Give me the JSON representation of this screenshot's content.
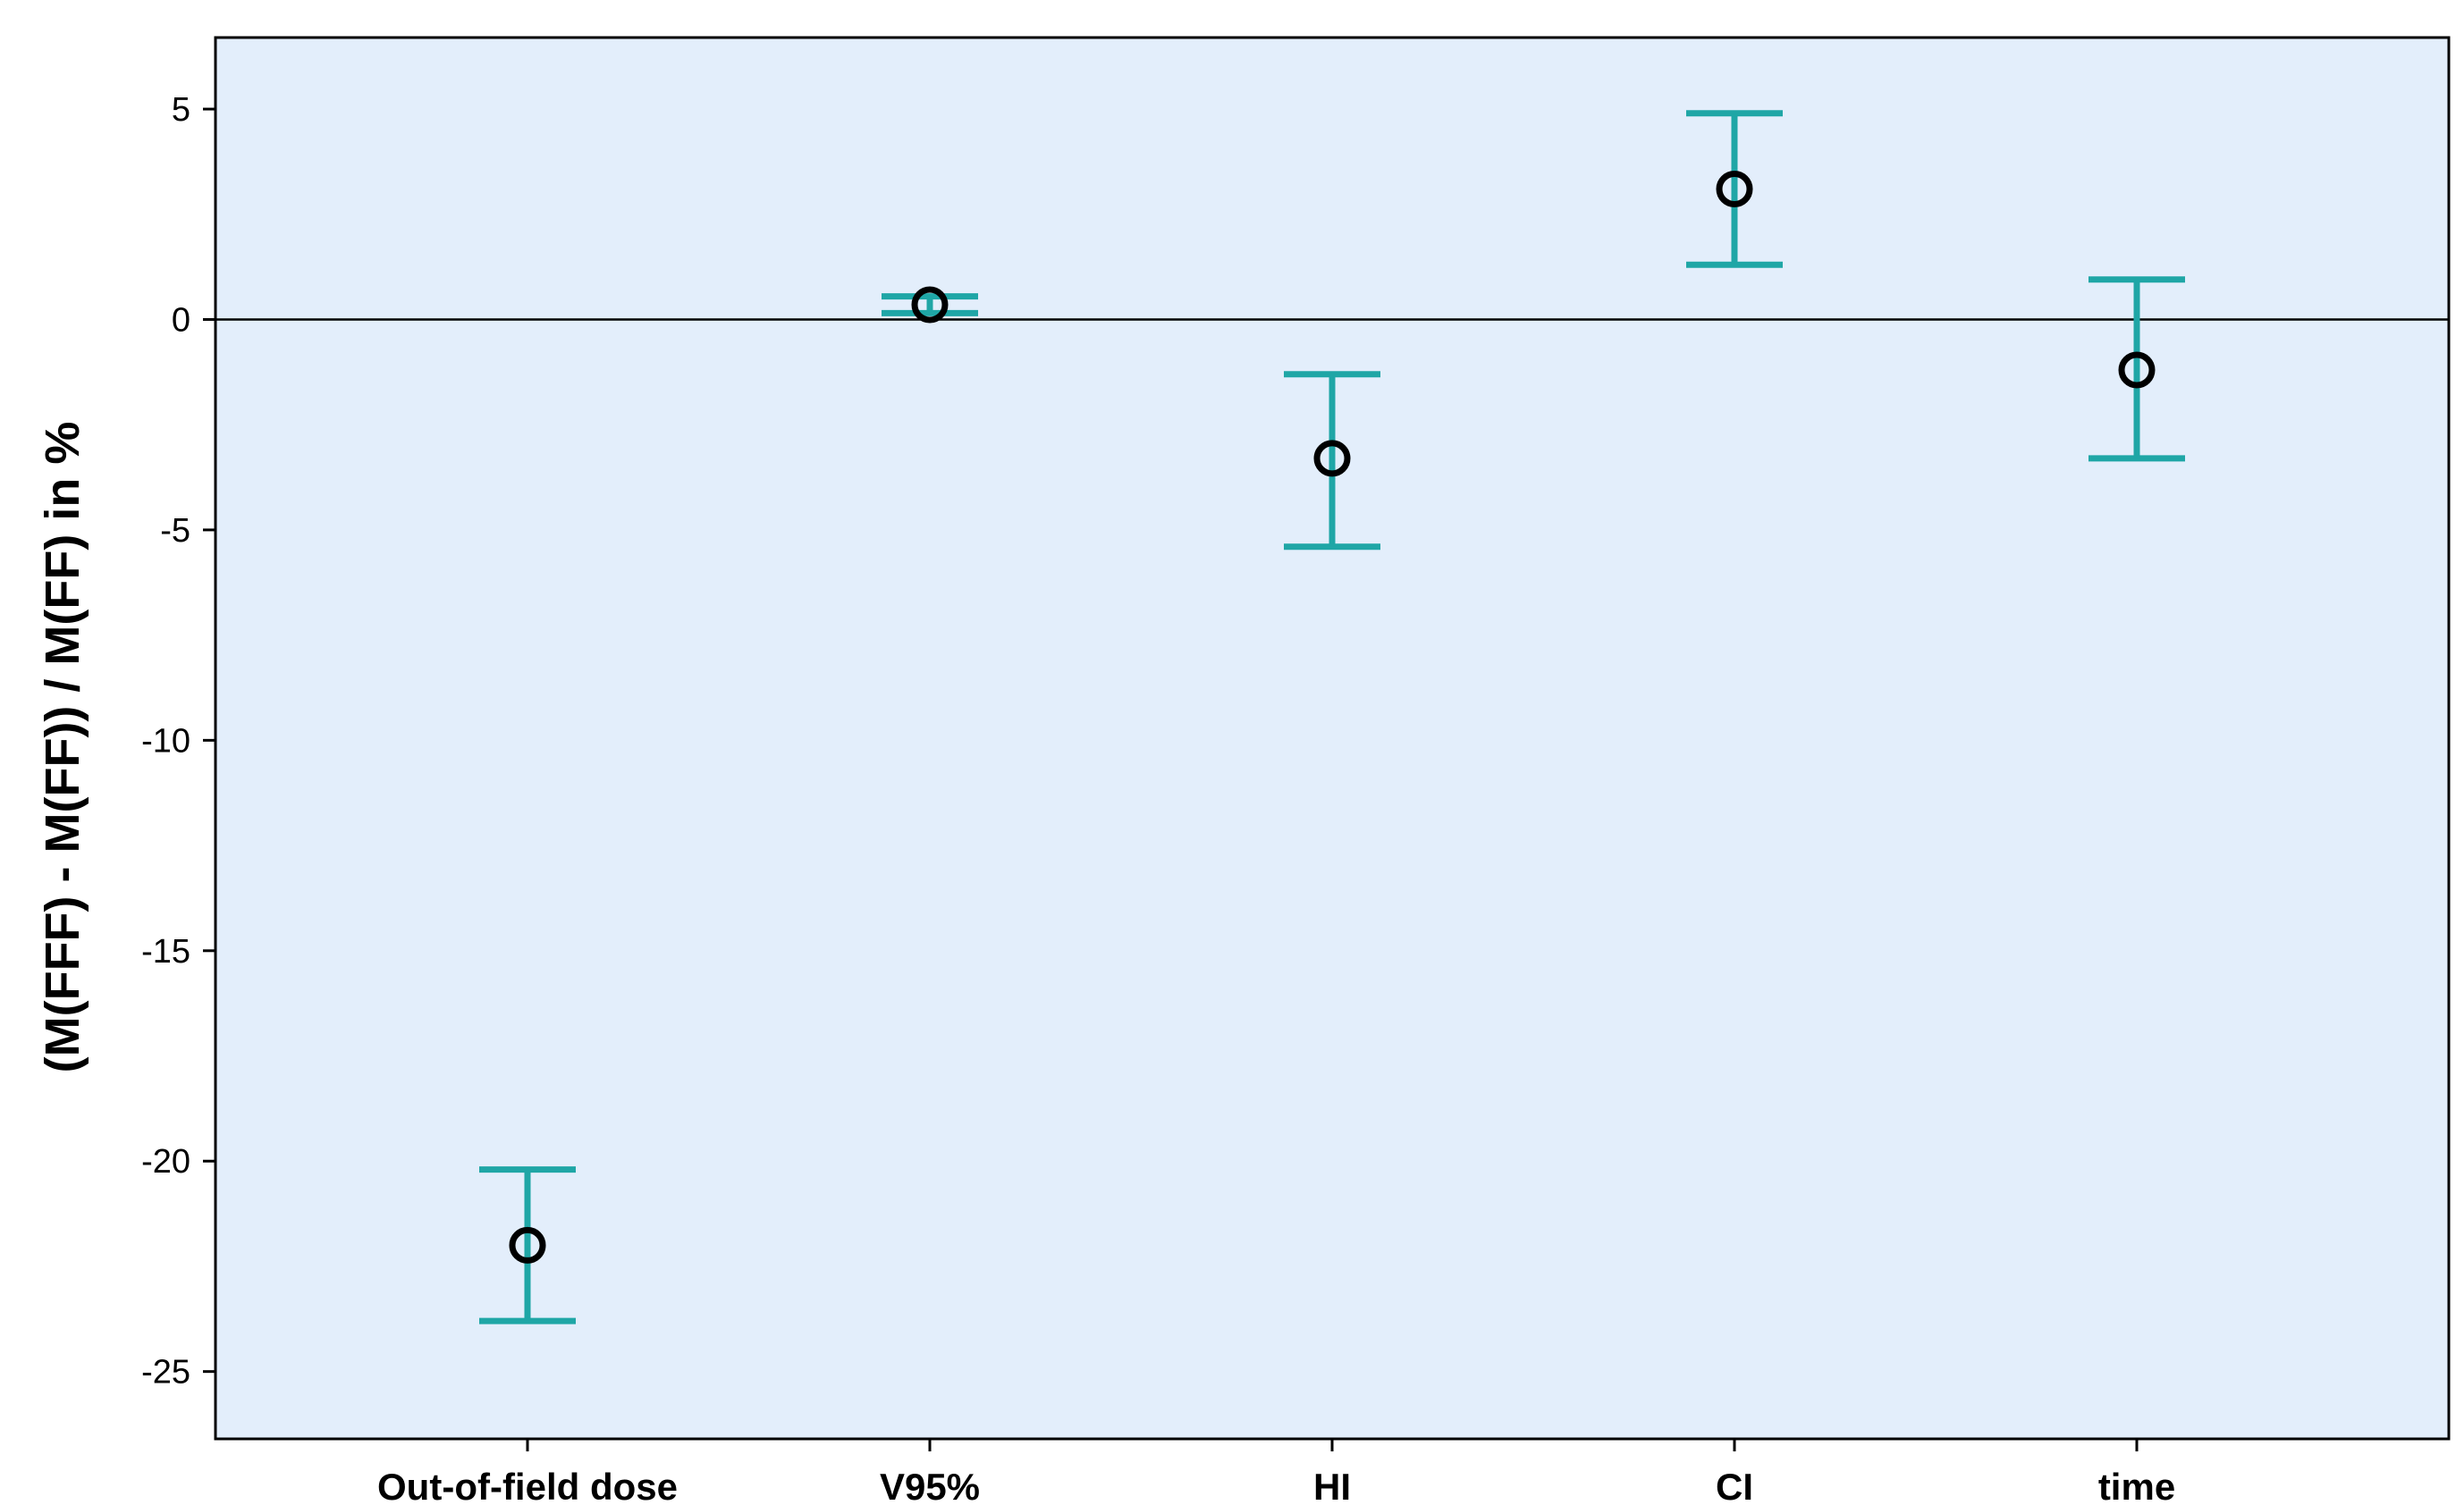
{
  "chart_data": {
    "type": "errorbar",
    "ylabel": "(M(FFF) - M(FF)) / M(FF) in %",
    "xlabel": "",
    "title": "",
    "ylim": [
      -26.6,
      6.7
    ],
    "yticks": [
      5,
      0,
      -5,
      -10,
      -15,
      -20,
      -25
    ],
    "reference_line_y": 0,
    "grid": false,
    "categories": [
      "Out-of-field dose",
      "V95%",
      "HI",
      "CI",
      "time"
    ],
    "points": [
      {
        "category": "Out-of-field dose",
        "mean": -22.0,
        "lower": -23.8,
        "upper": -20.2
      },
      {
        "category": "V95%",
        "mean": 0.35,
        "lower": 0.15,
        "upper": 0.55
      },
      {
        "category": "HI",
        "mean": -3.3,
        "lower": -5.4,
        "upper": -1.3
      },
      {
        "category": "CI",
        "mean": 3.1,
        "lower": 1.3,
        "upper": 4.9
      },
      {
        "category": "time",
        "mean": -1.2,
        "lower": -3.3,
        "upper": 0.95
      }
    ],
    "colors": {
      "error_bar": "#1fa6a6",
      "marker": "#000000",
      "plot_background": "#e3eefb",
      "reference_line": "#000000"
    }
  }
}
